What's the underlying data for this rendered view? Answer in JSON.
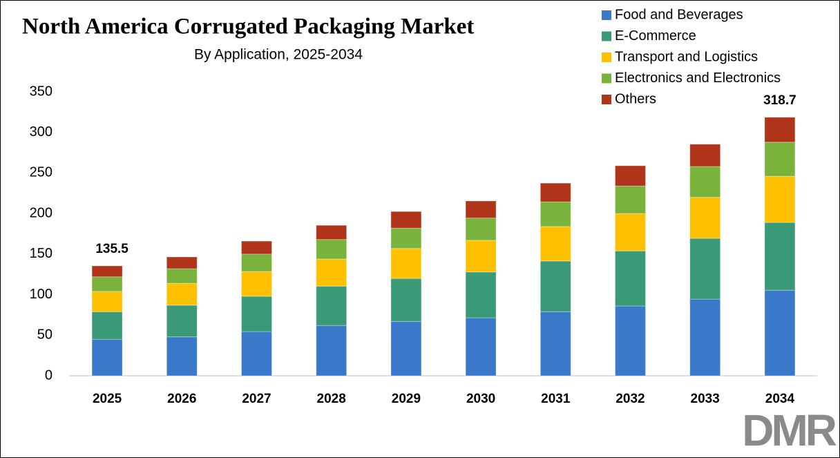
{
  "chart_data": {
    "type": "stacked_bar",
    "title": "North America Corrugated Packaging Market",
    "subtitle": "By Application, 2025-2034",
    "categories": [
      "2025",
      "2026",
      "2027",
      "2028",
      "2029",
      "2030",
      "2031",
      "2032",
      "2033",
      "2034"
    ],
    "series": [
      {
        "name": "Food and Beverages",
        "color": "#3a78c9",
        "values": [
          45,
          48,
          54.5,
          62,
          67,
          71.5,
          79,
          86,
          94.5,
          105.5
        ]
      },
      {
        "name": "E-Commerce",
        "color": "#3a9a78",
        "values": [
          34,
          39,
          43.5,
          48.5,
          53,
          56.5,
          62.5,
          68,
          75,
          83.5
        ]
      },
      {
        "name": "Transport and Logistics",
        "color": "#ffc000",
        "values": [
          25,
          27,
          30.5,
          33.5,
          37,
          39,
          42.5,
          46,
          50.5,
          57
        ]
      },
      {
        "name": "Electronics and Electronics",
        "color": "#7ab33c",
        "values": [
          18,
          18,
          21.5,
          24,
          25,
          27.5,
          30.5,
          34,
          38,
          42
        ]
      },
      {
        "name": "Others",
        "color": "#b0341a",
        "values": [
          13.5,
          14.5,
          16,
          17.5,
          20.5,
          21,
          23,
          25,
          27.5,
          30.7
        ]
      }
    ],
    "total_labels": [
      "135.5",
      null,
      null,
      null,
      null,
      null,
      null,
      null,
      null,
      "318.7"
    ],
    "ylim": [
      0,
      350
    ],
    "yticks": [
      0,
      50,
      100,
      150,
      200,
      250,
      300,
      350
    ],
    "grid": false,
    "legend": "top-right",
    "logo": "DMR"
  }
}
